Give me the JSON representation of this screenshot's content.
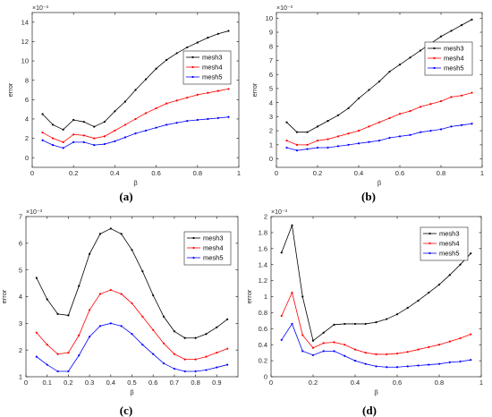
{
  "colors": {
    "mesh3": "#000000",
    "mesh4": "#ff0000",
    "mesh5": "#0000ff",
    "axis": "#262626"
  },
  "chart_data": [
    {
      "type": "line",
      "caption": "(a)",
      "xlabel": "β",
      "ylabel": "error",
      "exponent": "×10⁻³",
      "xlim": [
        0,
        1
      ],
      "ylim": [
        -1,
        15
      ],
      "xticks": [
        0,
        0.2,
        0.4,
        0.6,
        0.8,
        1
      ],
      "xticklabels": [
        "0",
        "0.2",
        "0.4",
        "0.6",
        "0.8",
        "1"
      ],
      "yticks": [
        0,
        2,
        4,
        6,
        8,
        10,
        12,
        14
      ],
      "yticklabels": [
        "0",
        "2",
        "4",
        "6",
        "8",
        "10",
        "12",
        "14"
      ],
      "legend": "right",
      "x": [
        0.05,
        0.1,
        0.15,
        0.2,
        0.25,
        0.3,
        0.35,
        0.4,
        0.45,
        0.5,
        0.55,
        0.6,
        0.65,
        0.7,
        0.75,
        0.8,
        0.85,
        0.9,
        0.95
      ],
      "series": [
        {
          "name": "mesh3",
          "values": [
            4.5,
            3.4,
            2.9,
            3.9,
            3.7,
            3.2,
            3.7,
            4.8,
            5.8,
            7.0,
            8.1,
            9.2,
            10.1,
            10.8,
            11.4,
            11.9,
            12.4,
            12.8,
            13.1
          ]
        },
        {
          "name": "mesh4",
          "values": [
            2.6,
            2.0,
            1.6,
            2.4,
            2.3,
            2.0,
            2.2,
            2.8,
            3.4,
            4.0,
            4.6,
            5.1,
            5.6,
            5.9,
            6.2,
            6.5,
            6.7,
            6.9,
            7.1
          ]
        },
        {
          "name": "mesh5",
          "values": [
            1.8,
            1.3,
            1.0,
            1.6,
            1.6,
            1.3,
            1.4,
            1.7,
            2.1,
            2.5,
            2.8,
            3.1,
            3.4,
            3.6,
            3.8,
            3.9,
            4.0,
            4.1,
            4.2
          ]
        }
      ]
    },
    {
      "type": "line",
      "caption": "(b)",
      "xlabel": "β",
      "ylabel": "error",
      "exponent": "×10⁻³",
      "xlim": [
        0,
        1
      ],
      "ylim": [
        -0.6,
        10.4
      ],
      "xticks": [
        0,
        0.2,
        0.4,
        0.6,
        0.8,
        1
      ],
      "xticklabels": [
        "0",
        "0.2",
        "0.4",
        "0.6",
        "0.8",
        "1"
      ],
      "yticks": [
        0,
        1,
        2,
        3,
        4,
        5,
        6,
        7,
        8,
        9,
        10
      ],
      "yticklabels": [
        "0",
        "1",
        "2",
        "3",
        "4",
        "5",
        "6",
        "7",
        "8",
        "9",
        "10"
      ],
      "legend": "top-right",
      "x": [
        0.05,
        0.1,
        0.15,
        0.2,
        0.25,
        0.3,
        0.35,
        0.4,
        0.45,
        0.5,
        0.55,
        0.6,
        0.65,
        0.7,
        0.75,
        0.8,
        0.85,
        0.9,
        0.95
      ],
      "series": [
        {
          "name": "mesh3",
          "values": [
            2.6,
            1.9,
            1.9,
            2.3,
            2.7,
            3.1,
            3.6,
            4.3,
            4.9,
            5.5,
            6.2,
            6.7,
            7.2,
            7.7,
            8.2,
            8.7,
            9.1,
            9.5,
            9.9
          ]
        },
        {
          "name": "mesh4",
          "values": [
            1.3,
            1.0,
            1.0,
            1.3,
            1.4,
            1.6,
            1.8,
            2.0,
            2.3,
            2.6,
            2.9,
            3.2,
            3.4,
            3.7,
            3.9,
            4.1,
            4.4,
            4.5,
            4.7
          ]
        },
        {
          "name": "mesh5",
          "values": [
            0.8,
            0.6,
            0.7,
            0.8,
            0.8,
            0.9,
            1.0,
            1.1,
            1.2,
            1.3,
            1.5,
            1.6,
            1.7,
            1.9,
            2.0,
            2.1,
            2.3,
            2.4,
            2.5
          ]
        }
      ]
    },
    {
      "type": "line",
      "caption": "(c)",
      "xlabel": "β",
      "ylabel": "error",
      "exponent": "×10⁻³",
      "xlim": [
        0,
        1
      ],
      "ylim": [
        1,
        7
      ],
      "xticks": [
        0,
        0.1,
        0.2,
        0.3,
        0.4,
        0.5,
        0.6,
        0.7,
        0.8,
        0.9
      ],
      "xticklabels": [
        "0",
        "0.1",
        "0.2",
        "0.3",
        "0.4",
        "0.5",
        "0.6",
        "0.7",
        "0.8",
        "0.9"
      ],
      "yticks": [
        1,
        2,
        3,
        4,
        5,
        6,
        7
      ],
      "yticklabels": [
        "1",
        "2",
        "3",
        "4",
        "5",
        "6",
        "7"
      ],
      "legend": "top-right",
      "x": [
        0.05,
        0.1,
        0.15,
        0.2,
        0.25,
        0.3,
        0.35,
        0.4,
        0.45,
        0.5,
        0.55,
        0.6,
        0.65,
        0.7,
        0.75,
        0.8,
        0.85,
        0.9,
        0.95
      ],
      "series": [
        {
          "name": "mesh3",
          "values": [
            4.7,
            3.9,
            3.35,
            3.3,
            4.4,
            5.6,
            6.35,
            6.55,
            6.35,
            5.75,
            4.95,
            4.05,
            3.25,
            2.7,
            2.45,
            2.45,
            2.6,
            2.85,
            3.15
          ]
        },
        {
          "name": "mesh4",
          "values": [
            2.65,
            2.2,
            1.85,
            1.9,
            2.55,
            3.5,
            4.1,
            4.25,
            4.1,
            3.75,
            3.25,
            2.75,
            2.25,
            1.85,
            1.65,
            1.65,
            1.75,
            1.9,
            2.05
          ]
        },
        {
          "name": "mesh5",
          "values": [
            1.75,
            1.45,
            1.2,
            1.2,
            1.8,
            2.5,
            2.9,
            3.0,
            2.9,
            2.6,
            2.2,
            1.85,
            1.5,
            1.3,
            1.2,
            1.2,
            1.25,
            1.35,
            1.45
          ]
        }
      ]
    },
    {
      "type": "line",
      "caption": "(d)",
      "xlabel": "β",
      "ylabel": "error",
      "exponent": "×10⁻³",
      "xlim": [
        0,
        1
      ],
      "ylim": [
        0,
        2
      ],
      "xticks": [
        0,
        0.2,
        0.4,
        0.6,
        0.8,
        1
      ],
      "xticklabels": [
        "0",
        "0.2",
        "0.4",
        "0.6",
        "0.8",
        "1"
      ],
      "yticks": [
        0,
        0.2,
        0.4,
        0.6,
        0.8,
        1,
        1.2,
        1.4,
        1.6,
        1.8,
        2
      ],
      "yticklabels": [
        "0",
        "0.2",
        "0.4",
        "0.6",
        "0.8",
        "1",
        "1.2",
        "1.4",
        "1.6",
        "1.8",
        "2"
      ],
      "legend": "top-right",
      "x": [
        0.05,
        0.1,
        0.15,
        0.2,
        0.25,
        0.3,
        0.35,
        0.4,
        0.45,
        0.5,
        0.55,
        0.6,
        0.65,
        0.7,
        0.75,
        0.8,
        0.85,
        0.9,
        0.95
      ],
      "series": [
        {
          "name": "mesh3",
          "values": [
            1.55,
            1.89,
            1.0,
            0.45,
            0.55,
            0.65,
            0.66,
            0.66,
            0.66,
            0.68,
            0.72,
            0.78,
            0.86,
            0.95,
            1.05,
            1.15,
            1.27,
            1.4,
            1.54
          ]
        },
        {
          "name": "mesh4",
          "values": [
            0.76,
            1.05,
            0.52,
            0.36,
            0.42,
            0.43,
            0.4,
            0.34,
            0.3,
            0.28,
            0.28,
            0.29,
            0.31,
            0.34,
            0.37,
            0.4,
            0.44,
            0.48,
            0.53
          ]
        },
        {
          "name": "mesh5",
          "values": [
            0.46,
            0.66,
            0.32,
            0.27,
            0.32,
            0.32,
            0.26,
            0.2,
            0.16,
            0.13,
            0.12,
            0.12,
            0.13,
            0.14,
            0.15,
            0.16,
            0.18,
            0.19,
            0.21
          ]
        }
      ]
    }
  ]
}
